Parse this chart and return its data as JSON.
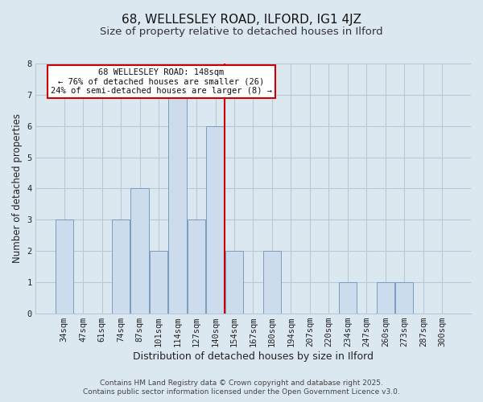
{
  "title": "68, WELLESLEY ROAD, ILFORD, IG1 4JZ",
  "subtitle": "Size of property relative to detached houses in Ilford",
  "xlabel": "Distribution of detached houses by size in Ilford",
  "ylabel": "Number of detached properties",
  "bin_labels": [
    "34sqm",
    "47sqm",
    "61sqm",
    "74sqm",
    "87sqm",
    "101sqm",
    "114sqm",
    "127sqm",
    "140sqm",
    "154sqm",
    "167sqm",
    "180sqm",
    "194sqm",
    "207sqm",
    "220sqm",
    "234sqm",
    "247sqm",
    "260sqm",
    "273sqm",
    "287sqm",
    "300sqm"
  ],
  "bar_heights": [
    3,
    0,
    0,
    3,
    4,
    2,
    7,
    3,
    6,
    2,
    0,
    2,
    0,
    0,
    0,
    1,
    0,
    1,
    1,
    0,
    0
  ],
  "bar_color": "#ccdcec",
  "bar_edge_color": "#7a9cbf",
  "vline_color": "#cc0000",
  "ylim": [
    0,
    8
  ],
  "yticks": [
    0,
    1,
    2,
    3,
    4,
    5,
    6,
    7,
    8
  ],
  "annotation_line1": "68 WELLESLEY ROAD: 148sqm",
  "annotation_line2": "← 76% of detached houses are smaller (26)",
  "annotation_line3": "24% of semi-detached houses are larger (8) →",
  "annotation_box_color": "#ffffff",
  "annotation_border_color": "#cc0000",
  "footer_line1": "Contains HM Land Registry data © Crown copyright and database right 2025.",
  "footer_line2": "Contains public sector information licensed under the Open Government Licence v3.0.",
  "background_color": "#dce8f0",
  "plot_background_color": "#dce8f0",
  "grid_color": "#b8c8d8",
  "title_fontsize": 11,
  "subtitle_fontsize": 9.5,
  "xlabel_fontsize": 9,
  "ylabel_fontsize": 8.5,
  "tick_fontsize": 7.5,
  "footer_fontsize": 6.5,
  "annotation_fontsize": 7.5
}
